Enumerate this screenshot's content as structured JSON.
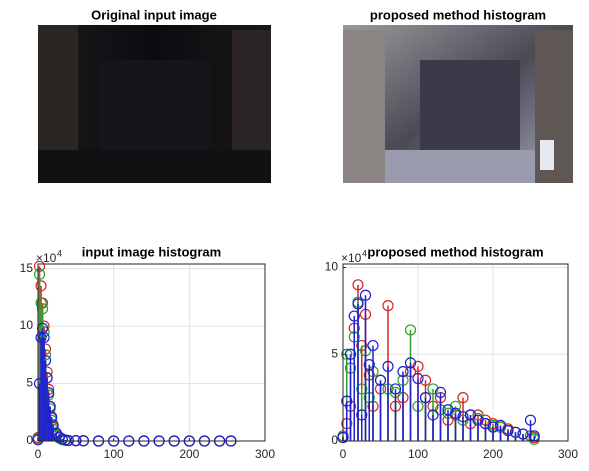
{
  "chart_data": [
    {
      "type": "image",
      "title": "Original input image"
    },
    {
      "type": "image",
      "title": "proposed method histogram"
    },
    {
      "type": "stem",
      "title": "input image histogram",
      "y_exponent_base": "×10",
      "y_exponent_power": "4",
      "x": [
        0,
        2,
        4,
        6,
        8,
        10,
        12,
        14,
        16,
        18,
        20,
        24,
        28,
        32,
        36,
        40,
        50,
        60,
        80,
        100,
        120,
        140,
        160,
        180,
        200,
        220,
        240,
        255
      ],
      "series": [
        {
          "color": "#d62728",
          "values": [
            0.3,
            15.2,
            13.5,
            12,
            10,
            8,
            6,
            4.5,
            3,
            2,
            1.2,
            0.6,
            0.3,
            0.15,
            0.08,
            0.05,
            0.03,
            0.02,
            0.01,
            0,
            0,
            0,
            0,
            0,
            0,
            0,
            0,
            0
          ]
        },
        {
          "color": "#2ca02c",
          "values": [
            0.2,
            14.5,
            12,
            11.5,
            9.5,
            7.5,
            5.5,
            4,
            2.8,
            1.8,
            1,
            0.5,
            0.25,
            0.12,
            0.06,
            0.04,
            0.02,
            0.01,
            0,
            0,
            0,
            0,
            0,
            0,
            0,
            0,
            0,
            0
          ]
        },
        {
          "color": "#1f1fd6",
          "values": [
            0.1,
            5,
            9,
            9.8,
            9,
            7,
            5.5,
            4.2,
            3,
            2.1,
            1.4,
            0.7,
            0.35,
            0.18,
            0.09,
            0.05,
            0.03,
            0.02,
            0,
            0,
            0,
            0,
            0,
            0,
            0,
            0,
            0,
            0
          ]
        }
      ],
      "xlim": [
        0,
        300
      ],
      "ylim": [
        0,
        15.4
      ],
      "xticks": [
        0,
        100,
        200,
        300
      ],
      "yticks": [
        0,
        5,
        10,
        15
      ],
      "grid": true
    },
    {
      "type": "stem",
      "title": "proposed method histogram",
      "y_exponent_base": "×10",
      "y_exponent_power": "4",
      "x": [
        0,
        5,
        10,
        15,
        20,
        25,
        30,
        35,
        40,
        50,
        60,
        70,
        80,
        90,
        100,
        110,
        120,
        130,
        140,
        150,
        160,
        170,
        180,
        190,
        200,
        210,
        220,
        230,
        240,
        250,
        255
      ],
      "series": [
        {
          "color": "#d62728",
          "values": [
            0.2,
            1,
            2,
            6.5,
            9,
            5.5,
            7.3,
            3.8,
            2,
            3,
            7.8,
            2,
            2.5,
            4,
            4.3,
            3.5,
            2,
            2.5,
            1.2,
            1.5,
            2.5,
            1,
            1.5,
            1.2,
            1,
            0.8,
            0.7,
            0.5,
            0.4,
            0.3,
            0.2
          ]
        },
        {
          "color": "#2ca02c",
          "values": [
            0.3,
            5,
            4.2,
            6,
            8,
            3,
            5.2,
            2.5,
            4,
            3.5,
            3,
            2.8,
            3.5,
            6.4,
            2,
            2.5,
            3,
            1.8,
            1.6,
            2,
            1.2,
            1.5,
            1.3,
            1,
            0.9,
            0.8,
            0.6,
            0.5,
            0.4,
            0.3,
            0.1
          ]
        },
        {
          "color": "#1f1fd6",
          "values": [
            0.2,
            2.3,
            5,
            7.2,
            7.9,
            1.5,
            8.4,
            4.4,
            5.5,
            3.5,
            4.3,
            3,
            4,
            4.5,
            3.6,
            2.5,
            1.5,
            2.8,
            1.8,
            1.6,
            1.4,
            1.5,
            1.2,
            1,
            0.8,
            0.9,
            0.6,
            0.5,
            0.4,
            1.2,
            0.3
          ]
        }
      ],
      "xlim": [
        0,
        300
      ],
      "ylim": [
        0,
        10.2
      ],
      "xticks": [
        0,
        100,
        200,
        300
      ],
      "yticks": [
        0,
        5,
        10
      ],
      "grid": true
    }
  ]
}
